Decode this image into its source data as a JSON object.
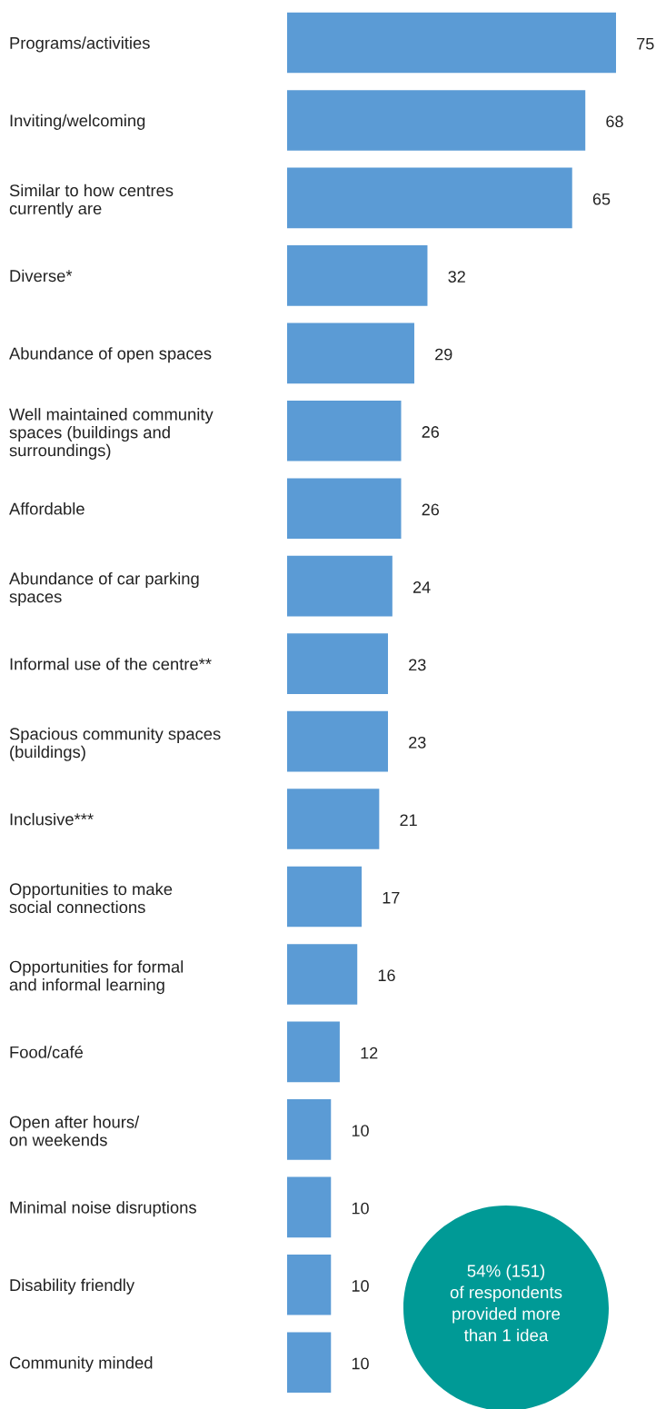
{
  "chart_data": {
    "type": "bar",
    "orientation": "horizontal",
    "categories": [
      "Programs/activities",
      "Inviting/welcoming",
      "Similar to how centres\ncurrently are",
      "Diverse*",
      "Abundance of open spaces",
      "Well maintained community\nspaces (buildings and\nsurroundings)",
      "Affordable",
      "Abundance of car parking\nspaces",
      "Informal use of the centre**",
      "Spacious community spaces\n(buildings)",
      "Inclusive***",
      "Opportunities to make\nsocial connections",
      "Opportunities for formal\nand informal learning",
      "Food/café",
      "Open after hours/\non weekends",
      "Minimal noise disruptions",
      "Disability friendly",
      "Community minded"
    ],
    "values": [
      75,
      68,
      65,
      32,
      29,
      26,
      26,
      24,
      23,
      23,
      21,
      17,
      16,
      12,
      10,
      10,
      10,
      10
    ],
    "color": "#5b9bd5",
    "data_labels": true,
    "grid": false,
    "legend": false,
    "tick_labels": "y",
    "annotations": [
      "54% (151)\nof respondents\nprovided more\nthan 1 idea"
    ]
  }
}
